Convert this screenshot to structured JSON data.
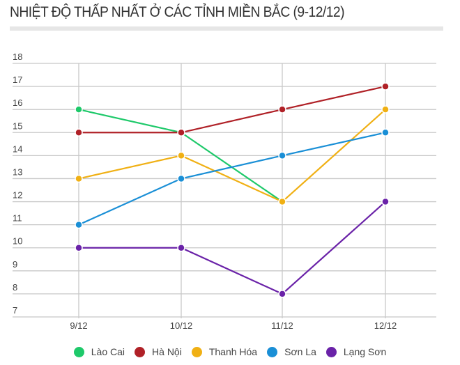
{
  "title": "NHIỆT ĐỘ THẤP NHẤT Ở CÁC TỈNH MIỀN BẮC (9-12/12)",
  "chart_data": {
    "type": "line",
    "title": "NHIỆT ĐỘ THẤP NHẤT Ở CÁC TỈNH MIỀN BẮC (9-12/12)",
    "xlabel": "",
    "ylabel": "",
    "categories": [
      "9/12",
      "10/12",
      "11/12",
      "12/12"
    ],
    "yticks": [
      18,
      17,
      16,
      15,
      14,
      13,
      12,
      11,
      10,
      9,
      8,
      7
    ],
    "ylim": [
      7,
      18
    ],
    "grid": true,
    "legend_position": "bottom",
    "series": [
      {
        "name": "Lào Cai",
        "color": "#1ec96a",
        "values": [
          16,
          15,
          12,
          null
        ]
      },
      {
        "name": "Hà Nội",
        "color": "#b02127",
        "values": [
          15,
          15,
          16,
          17
        ]
      },
      {
        "name": "Thanh Hóa",
        "color": "#f0b014",
        "values": [
          13,
          14,
          12,
          16
        ]
      },
      {
        "name": "Sơn La",
        "color": "#1a8fd6",
        "values": [
          11,
          13,
          14,
          15
        ]
      },
      {
        "name": "Lạng Sơn",
        "color": "#6a22a8",
        "values": [
          10,
          10,
          8,
          12
        ]
      }
    ]
  },
  "legend": [
    {
      "label": "Lào Cai",
      "color": "#1ec96a"
    },
    {
      "label": "Hà Nội",
      "color": "#b02127"
    },
    {
      "label": "Thanh Hóa",
      "color": "#f0b014"
    },
    {
      "label": "Sơn La",
      "color": "#1a8fd6"
    },
    {
      "label": "Lạng Sơn",
      "color": "#6a22a8"
    }
  ]
}
